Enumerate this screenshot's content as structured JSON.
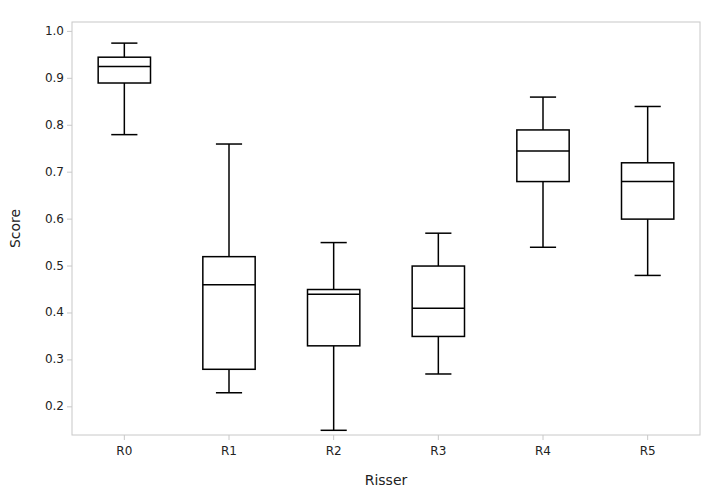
{
  "chart_data": {
    "type": "box",
    "categories": [
      "R0",
      "R1",
      "R2",
      "R3",
      "R4",
      "R5"
    ],
    "boxes": [
      {
        "whislo": 0.78,
        "q1": 0.89,
        "med": 0.925,
        "q3": 0.945,
        "whishi": 0.975
      },
      {
        "whislo": 0.23,
        "q1": 0.28,
        "med": 0.46,
        "q3": 0.52,
        "whishi": 0.76
      },
      {
        "whislo": 0.15,
        "q1": 0.33,
        "med": 0.44,
        "q3": 0.45,
        "whishi": 0.55
      },
      {
        "whislo": 0.27,
        "q1": 0.35,
        "med": 0.41,
        "q3": 0.5,
        "whishi": 0.57
      },
      {
        "whislo": 0.54,
        "q1": 0.68,
        "med": 0.745,
        "q3": 0.79,
        "whishi": 0.86
      },
      {
        "whislo": 0.48,
        "q1": 0.6,
        "med": 0.68,
        "q3": 0.72,
        "whishi": 0.84
      }
    ],
    "xlabel": "Risser",
    "ylabel": "Score",
    "ylim": [
      0.14,
      1.02
    ],
    "yticks": [
      0.2,
      0.3,
      0.4,
      0.5,
      0.6,
      0.7,
      0.8,
      0.9,
      {
        "value": 1.0,
        "label": "1.0"
      }
    ],
    "color": "black",
    "grid": false
  }
}
